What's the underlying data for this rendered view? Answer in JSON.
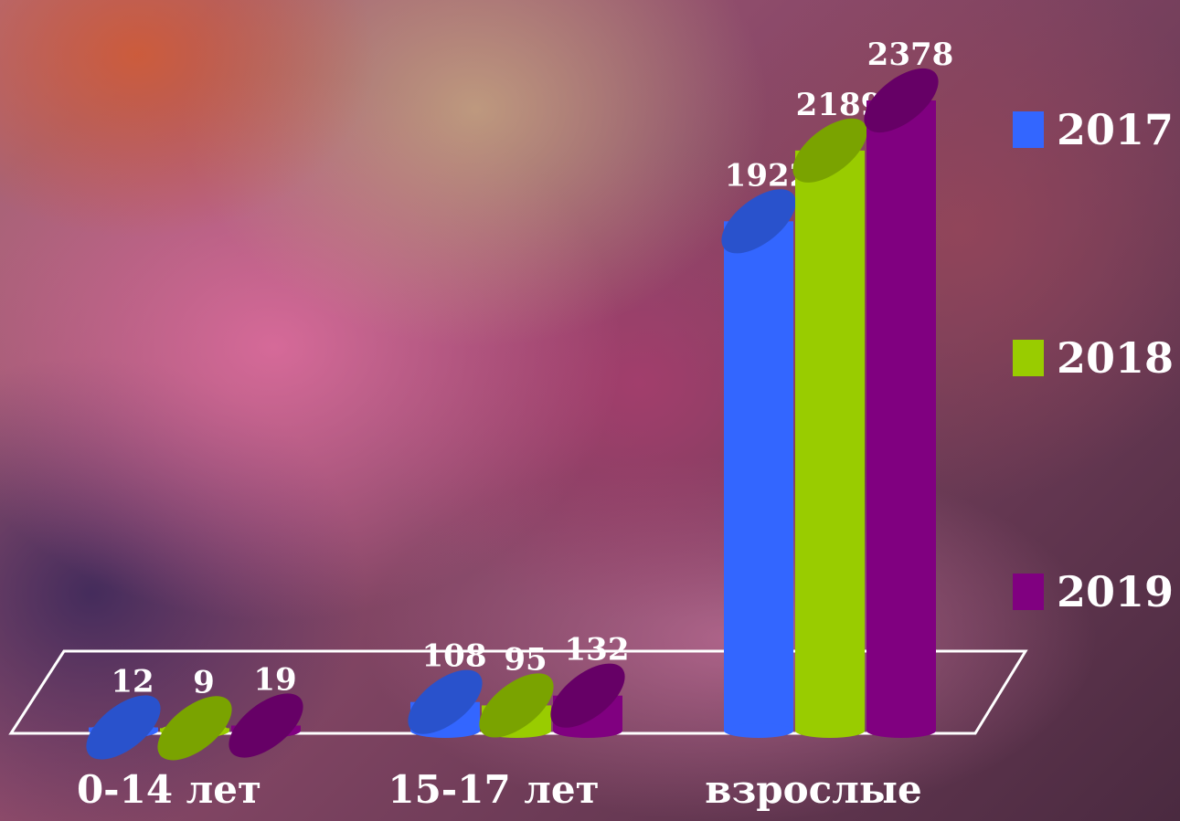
{
  "chart_data": {
    "type": "bar3d",
    "categories": [
      "0-14 лет",
      "15-17 лет",
      "взрослые"
    ],
    "series": [
      {
        "name": "2017",
        "color": "#3366ff",
        "values": [
          12,
          108,
          1922
        ]
      },
      {
        "name": "2018",
        "color": "#99cc00",
        "values": [
          9,
          95,
          2189
        ]
      },
      {
        "name": "2019",
        "color": "#800080",
        "values": [
          19,
          132,
          2378
        ]
      }
    ]
  }
}
